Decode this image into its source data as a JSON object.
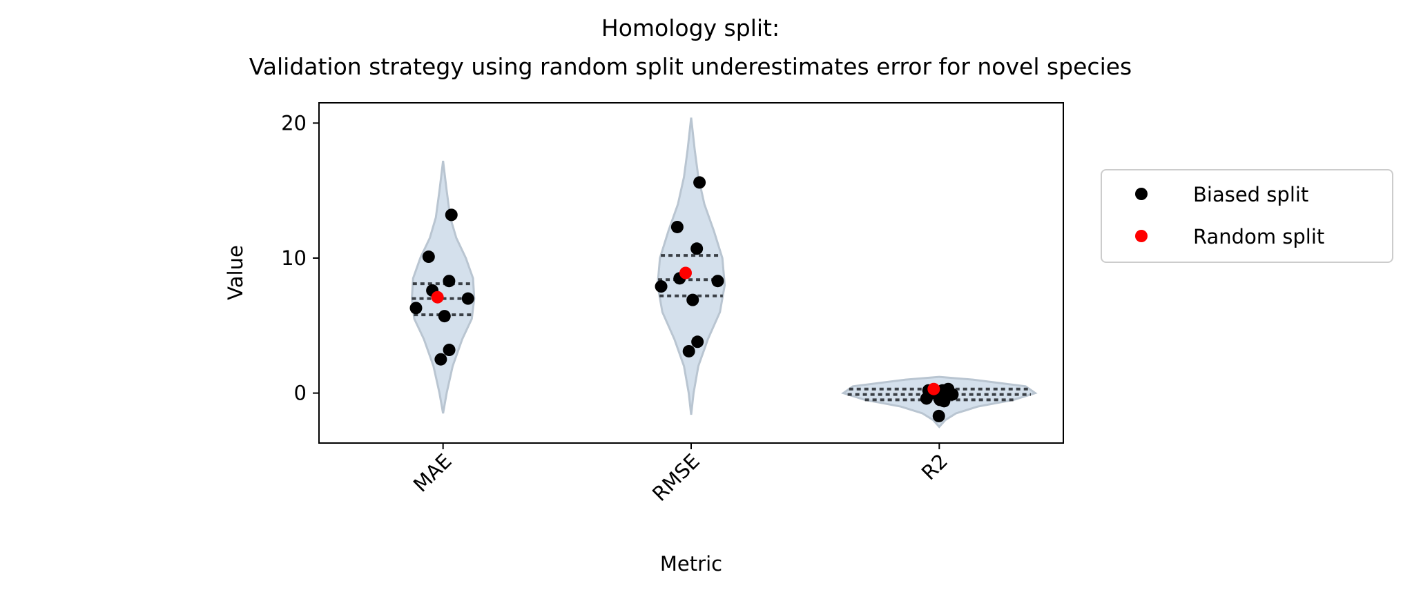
{
  "chart_data": {
    "type": "violin",
    "title": "Homology split:",
    "subtitle": "Validation strategy using random split underestimates error for novel species",
    "xlabel": "Metric",
    "ylabel": "Value",
    "ylim": [
      -3.7,
      21.5
    ],
    "yticks": [
      0,
      10,
      20
    ],
    "ytick_labels": [
      "0",
      "10",
      "20"
    ],
    "categories": [
      "MAE",
      "RMSE",
      "R2"
    ],
    "grid": false,
    "legend_position": "outside-right",
    "colors": {
      "violin_fill": "#d4e0ec",
      "violin_edge": "#b9c5d1",
      "quartile_line": "#3a3f45",
      "biased": "#000000",
      "random": "#ff0000"
    },
    "violins": [
      {
        "category": "MAE",
        "min": -1.5,
        "max": 17.2,
        "q1": 5.8,
        "median": 7.0,
        "q3": 8.1,
        "profile": [
          [
            -1.5,
            0
          ],
          [
            0,
            0.03
          ],
          [
            2,
            0.08
          ],
          [
            4,
            0.16
          ],
          [
            5.5,
            0.24
          ],
          [
            7,
            0.26
          ],
          [
            8.5,
            0.25
          ],
          [
            10,
            0.19
          ],
          [
            11.5,
            0.11
          ],
          [
            13,
            0.06
          ],
          [
            15,
            0.03
          ],
          [
            17.2,
            0
          ]
        ]
      },
      {
        "category": "RMSE",
        "min": -1.6,
        "max": 20.4,
        "q1": 7.2,
        "median": 8.4,
        "q3": 10.2,
        "profile": [
          [
            -1.6,
            0
          ],
          [
            0,
            0.02
          ],
          [
            2,
            0.06
          ],
          [
            4,
            0.14
          ],
          [
            6,
            0.24
          ],
          [
            8,
            0.28
          ],
          [
            10,
            0.26
          ],
          [
            12,
            0.19
          ],
          [
            14,
            0.11
          ],
          [
            16,
            0.06
          ],
          [
            18,
            0.03
          ],
          [
            20.4,
            0
          ]
        ]
      },
      {
        "category": "R2",
        "min": -2.5,
        "max": 1.2,
        "q1": -0.5,
        "median": -0.1,
        "q3": 0.3,
        "profile": [
          [
            -2.5,
            0
          ],
          [
            -2,
            0.05
          ],
          [
            -1.5,
            0.14
          ],
          [
            -1,
            0.32
          ],
          [
            -0.5,
            0.62
          ],
          [
            0,
            0.8
          ],
          [
            0.5,
            0.72
          ],
          [
            1,
            0.28
          ],
          [
            1.2,
            0
          ]
        ]
      }
    ],
    "series": [
      {
        "name": "Biased split",
        "color": "#000000",
        "points": [
          {
            "category": "MAE",
            "y": 13.2
          },
          {
            "category": "MAE",
            "y": 10.1
          },
          {
            "category": "MAE",
            "y": 8.3
          },
          {
            "category": "MAE",
            "y": 7.6
          },
          {
            "category": "MAE",
            "y": 7.0
          },
          {
            "category": "MAE",
            "y": 6.3
          },
          {
            "category": "MAE",
            "y": 5.7
          },
          {
            "category": "MAE",
            "y": 3.2
          },
          {
            "category": "MAE",
            "y": 2.5
          },
          {
            "category": "RMSE",
            "y": 15.6
          },
          {
            "category": "RMSE",
            "y": 12.3
          },
          {
            "category": "RMSE",
            "y": 10.7
          },
          {
            "category": "RMSE",
            "y": 8.5
          },
          {
            "category": "RMSE",
            "y": 8.3
          },
          {
            "category": "RMSE",
            "y": 7.9
          },
          {
            "category": "RMSE",
            "y": 6.9
          },
          {
            "category": "RMSE",
            "y": 3.8
          },
          {
            "category": "RMSE",
            "y": 3.1
          },
          {
            "category": "R2",
            "y": 0.3
          },
          {
            "category": "R2",
            "y": 0.2
          },
          {
            "category": "R2",
            "y": 0.2
          },
          {
            "category": "R2",
            "y": 0.0
          },
          {
            "category": "R2",
            "y": -0.1
          },
          {
            "category": "R2",
            "y": -0.4
          },
          {
            "category": "R2",
            "y": -0.5
          },
          {
            "category": "R2",
            "y": -0.6
          },
          {
            "category": "R2",
            "y": -1.7
          }
        ]
      },
      {
        "name": "Random split",
        "color": "#ff0000",
        "points": [
          {
            "category": "MAE",
            "y": 7.1
          },
          {
            "category": "RMSE",
            "y": 8.9
          },
          {
            "category": "R2",
            "y": 0.3
          }
        ]
      }
    ]
  }
}
